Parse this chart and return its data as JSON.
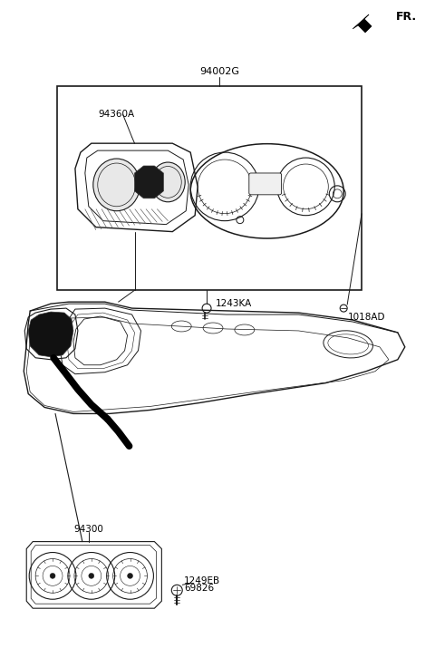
{
  "bg_color": "#ffffff",
  "lc": "#1a1a1a",
  "fig_w": 4.8,
  "fig_h": 7.15,
  "dpi": 100,
  "labels": {
    "FR": "FR.",
    "p1": "94002G",
    "p2": "94360A",
    "p3": "1243KA",
    "p4": "1018AD",
    "p5": "94300",
    "p6_1": "1249EB",
    "p6_2": "69826"
  }
}
